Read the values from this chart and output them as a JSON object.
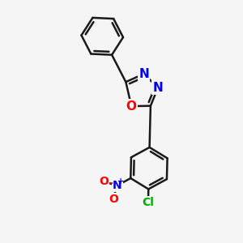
{
  "bg_color": "#f5f5f5",
  "bond_color": "#1a1a1a",
  "bond_width": 1.8,
  "dbo": 0.055,
  "atom_labels": {
    "O_ring": {
      "text": "O",
      "color": "#ff0000",
      "fontsize": 11,
      "fontweight": "bold"
    },
    "N3_ring": {
      "text": "N",
      "color": "#0000ee",
      "fontsize": 11,
      "fontweight": "bold"
    },
    "N4_ring": {
      "text": "N",
      "color": "#0000ee",
      "fontsize": 11,
      "fontweight": "bold"
    },
    "N_nitro": {
      "text": "N",
      "color": "#0000ee",
      "fontsize": 10,
      "fontweight": "bold"
    },
    "O1_nitro": {
      "text": "O",
      "color": "#ff0000",
      "fontsize": 10,
      "fontweight": "bold"
    },
    "O2_nitro": {
      "text": "O",
      "color": "#ff0000",
      "fontsize": 10,
      "fontweight": "bold"
    },
    "Cl": {
      "text": "Cl",
      "color": "#00aa00",
      "fontsize": 10,
      "fontweight": "bold"
    },
    "plus": {
      "text": "+",
      "color": "#0000ee",
      "fontsize": 7,
      "fontweight": "bold"
    },
    "minus": {
      "text": "-",
      "color": "#ff0000",
      "fontsize": 10,
      "fontweight": "bold"
    }
  },
  "xlim": [
    -1.6,
    1.2
  ],
  "ylim": [
    -2.4,
    2.0
  ]
}
